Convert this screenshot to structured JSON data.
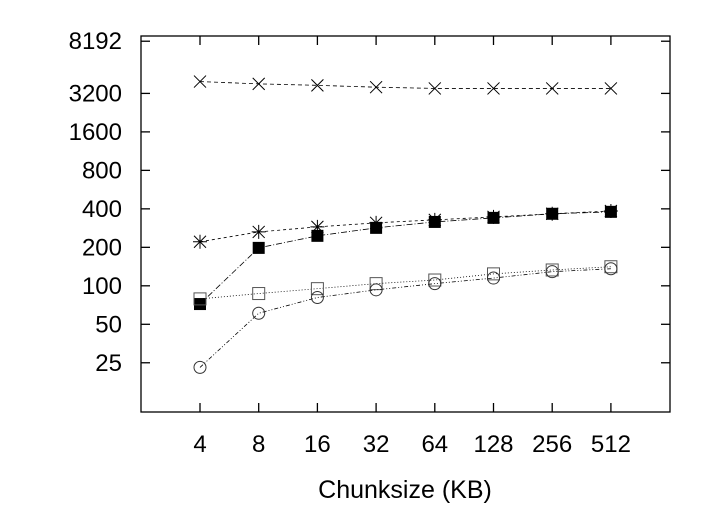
{
  "chart_data": {
    "type": "line",
    "title": "",
    "xlabel": "Chunksize (KB)",
    "ylabel": "",
    "categories": [
      "4",
      "8",
      "16",
      "32",
      "64",
      "128",
      "256",
      "512"
    ],
    "y_scale": "log2",
    "ylim": [
      10.3,
      9000
    ],
    "y_ticks": [
      25,
      50,
      100,
      200,
      400,
      800,
      1600,
      3200,
      8192
    ],
    "y_tick_labels": [
      "25",
      "50",
      "100",
      "200",
      "400",
      "800",
      "1600",
      "3200",
      "8192"
    ],
    "grid": false,
    "legend": "none",
    "series": [
      {
        "marker": "cross",
        "dash": "4,3",
        "values": [
          3960,
          3800,
          3700,
          3580,
          3500,
          3500,
          3500,
          3500
        ]
      },
      {
        "marker": "star",
        "dash": "3,3",
        "values": [
          221,
          264,
          289,
          311,
          328,
          346,
          366,
          385
        ]
      },
      {
        "marker": "filled-square",
        "dash": "6,2,1,2",
        "values": [
          72,
          198,
          246,
          284,
          316,
          340,
          366,
          379
        ]
      },
      {
        "marker": "open-square",
        "dash": "1,2",
        "values": [
          79,
          87,
          95,
          104,
          111,
          124,
          133,
          141
        ]
      },
      {
        "marker": "circle",
        "dash": "4,2,1,2,1,2",
        "values": [
          23,
          61,
          81,
          93,
          104,
          115,
          129,
          136
        ]
      }
    ]
  }
}
